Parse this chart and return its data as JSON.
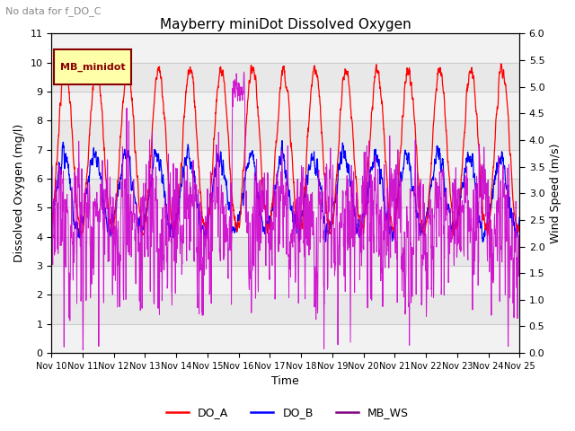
{
  "title": "Mayberry miniDot Dissolved Oxygen",
  "subtitle": "No data for f_DO_C",
  "ylabel_left": "Dissolved Oxygen (mg/l)",
  "ylabel_right": "Wind Speed (m/s)",
  "xlabel": "Time",
  "ylim_left": [
    0.0,
    11.0
  ],
  "ylim_right": [
    0.0,
    6.0
  ],
  "yticks_left": [
    0.0,
    1.0,
    2.0,
    3.0,
    4.0,
    5.0,
    6.0,
    7.0,
    8.0,
    9.0,
    10.0,
    11.0
  ],
  "yticks_right": [
    0.0,
    0.5,
    1.0,
    1.5,
    2.0,
    2.5,
    3.0,
    3.5,
    4.0,
    4.5,
    5.0,
    5.5,
    6.0
  ],
  "xtick_labels": [
    "Nov 10",
    "Nov 11",
    "Nov 12",
    "Nov 13",
    "Nov 14",
    "Nov 15",
    "Nov 16",
    "Nov 17",
    "Nov 18",
    "Nov 19",
    "Nov 20",
    "Nov 21",
    "Nov 22",
    "Nov 23",
    "Nov 24",
    "Nov 25"
  ],
  "legend_entries": [
    "DO_A",
    "DO_B",
    "MB_WS"
  ],
  "legend_colors": [
    "red",
    "blue",
    "purple"
  ],
  "color_DO_A": "red",
  "color_DO_B": "blue",
  "color_MB_WS": "#cc00cc",
  "grid_color": "#cccccc",
  "bg_color": "#e8e8e8",
  "band_color": "#d8d8d8",
  "legend_box_color": "#ffffaa",
  "legend_box_edge": "#880000",
  "legend_box_text": "MB_minidot",
  "legend_box_text_color": "#880000",
  "n_days": 15
}
